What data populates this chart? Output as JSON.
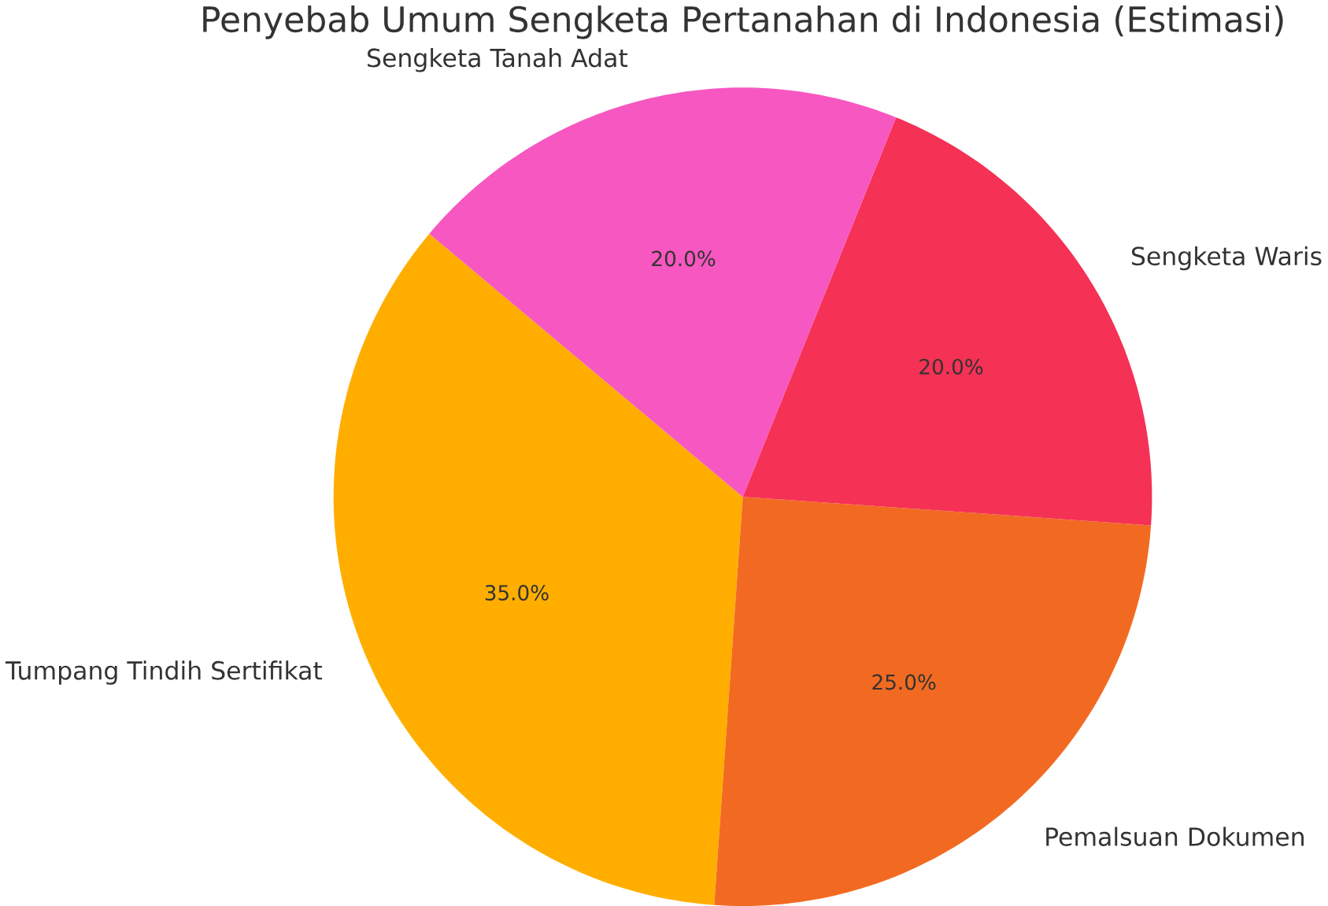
{
  "chart_data": {
    "type": "pie",
    "title": "Penyebab Umum Sengketa Pertanahan di Indonesia (Estimasi)",
    "categories": [
      "Tumpang Tindih Sertifikat",
      "Pemalsuan Dokumen",
      "Sengketa Waris",
      "Sengketa Tanah Adat"
    ],
    "values": [
      35,
      25,
      20,
      20
    ],
    "colors": [
      "#ffae00",
      "#f26a21",
      "#f53155",
      "#f757c0"
    ],
    "value_labels": [
      "35.0%",
      "25.0%",
      "20.0%",
      "20.0%"
    ]
  }
}
